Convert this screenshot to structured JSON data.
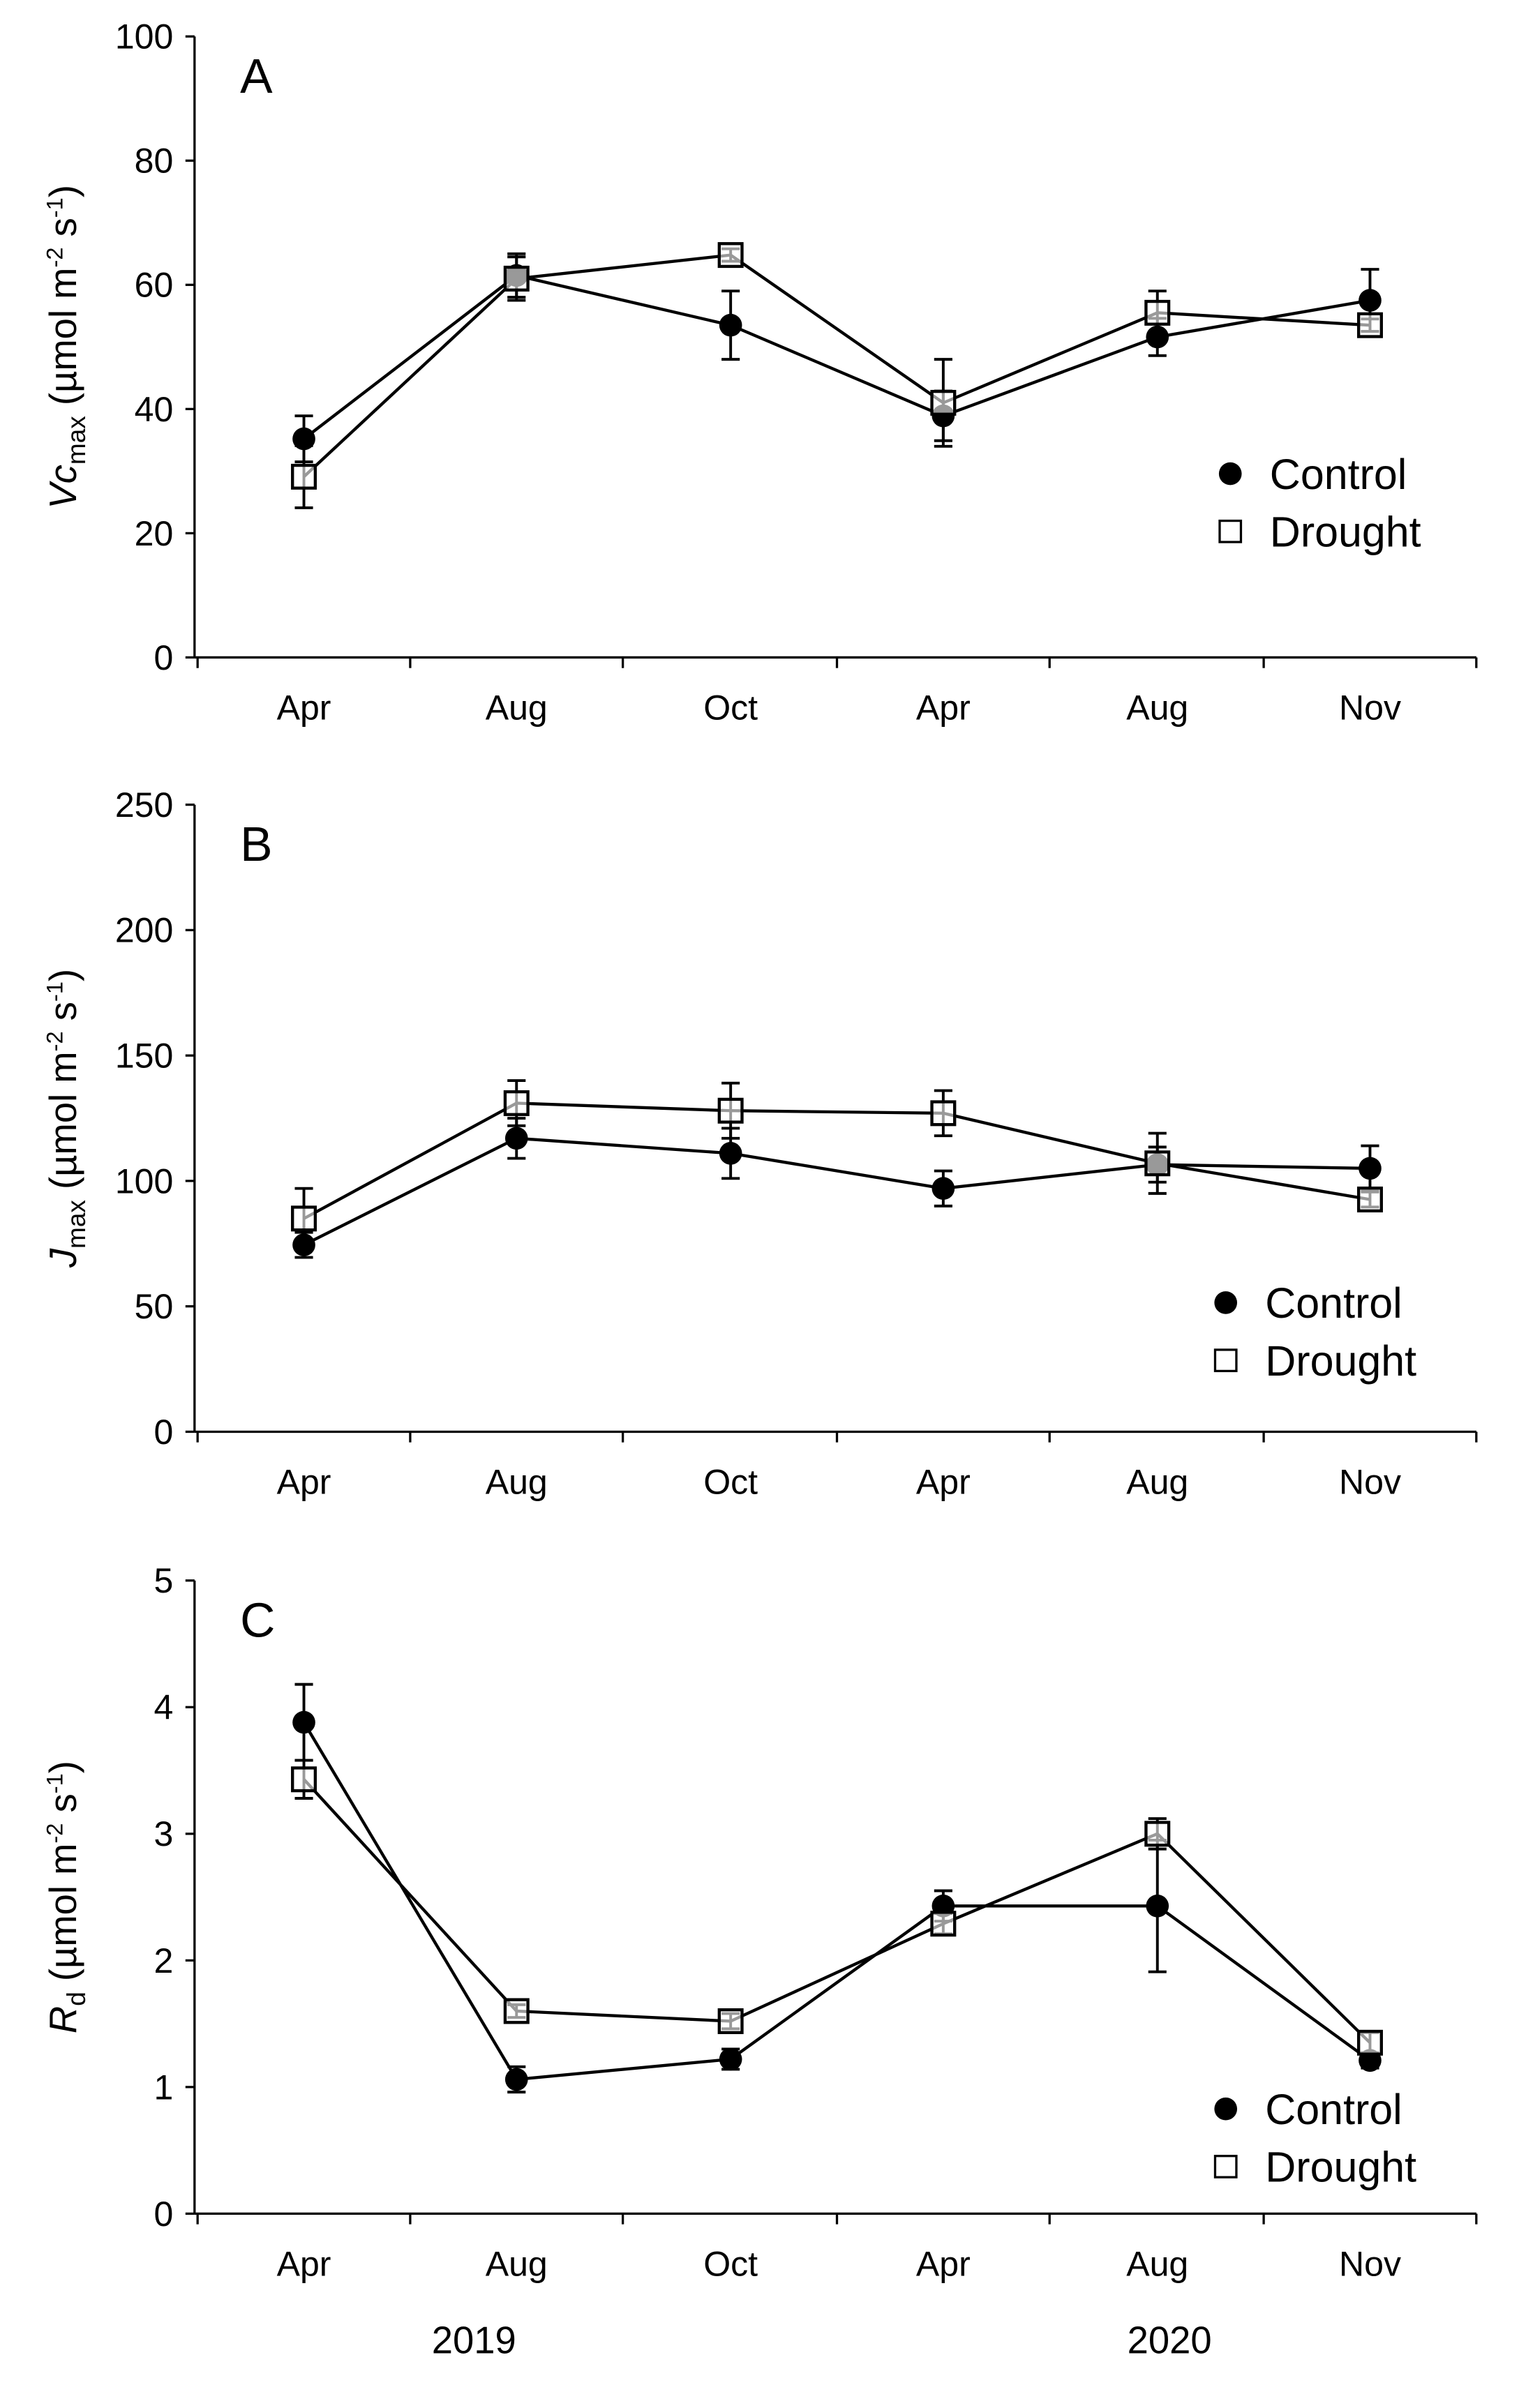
{
  "chart_data": [
    {
      "type": "line",
      "panel_label": "A",
      "ylabel": {
        "main": "Vc",
        "sub": "max",
        "unit": " (µmol m",
        "exp1": "-2",
        "mid": " s",
        "exp2": "-1",
        "close": ")"
      },
      "ylim": [
        0,
        100
      ],
      "yticks": [
        "0",
        "20",
        "40",
        "60",
        "80",
        "100"
      ],
      "categories": [
        "Apr",
        "Aug",
        "Oct",
        "Apr",
        "Aug",
        "Nov"
      ],
      "legend_placement": "right-lower",
      "series": [
        {
          "name": "Control",
          "marker": "filled-circle",
          "values": [
            35.2,
            61.5,
            53.5,
            38.9,
            51.6,
            57.5
          ],
          "errors": [
            3.7,
            3.5,
            5.5,
            4.0,
            3.0,
            5.0
          ]
        },
        {
          "name": "Drought",
          "marker": "open-square",
          "values": [
            29.1,
            61.0,
            64.8,
            41.0,
            55.5,
            53.5
          ],
          "errors": [
            5.0,
            3.5,
            1.0,
            7.0,
            3.5,
            1.0
          ]
        }
      ]
    },
    {
      "type": "line",
      "panel_label": "B",
      "ylabel": {
        "main": "J",
        "sub": "max",
        "unit": " (µmol m",
        "exp1": "-2",
        "mid": " s",
        "exp2": "-1",
        "close": ")"
      },
      "ylim": [
        0,
        250
      ],
      "yticks": [
        "0",
        "50",
        "100",
        "150",
        "200",
        "250"
      ],
      "categories": [
        "Apr",
        "Aug",
        "Oct",
        "Apr",
        "Aug",
        "Nov"
      ],
      "legend_placement": "right-lower",
      "series": [
        {
          "name": "Control",
          "marker": "filled-circle",
          "values": [
            74.5,
            117,
            111,
            97,
            106.5,
            105
          ],
          "errors": [
            5,
            8,
            10,
            7,
            7,
            9
          ]
        },
        {
          "name": "Drought",
          "marker": "open-square",
          "values": [
            85,
            131,
            128,
            127,
            107,
            92.6
          ],
          "errors": [
            12,
            9,
            11,
            9,
            12,
            3
          ]
        }
      ]
    },
    {
      "type": "line",
      "panel_label": "C",
      "ylabel": {
        "main": "R",
        "sub": "d",
        "unit": " (µmol m",
        "exp1": "-2",
        "mid": " s",
        "exp2": "-1",
        "close": ")"
      },
      "ylim": [
        0,
        5
      ],
      "yticks": [
        "0",
        "1",
        "2",
        "3",
        "4",
        "5"
      ],
      "categories": [
        "Apr",
        "Aug",
        "Oct",
        "Apr",
        "Aug",
        "Nov"
      ],
      "year_labels": [
        "2019",
        "2020"
      ],
      "legend_placement": "right-lower",
      "series": [
        {
          "name": "Control",
          "marker": "filled-circle",
          "values": [
            3.88,
            1.06,
            1.22,
            2.43,
            2.43,
            1.21
          ],
          "errors": [
            0.3,
            0.1,
            0.08,
            0.12,
            0.52,
            0.06
          ]
        },
        {
          "name": "Drought",
          "marker": "open-square",
          "values": [
            3.43,
            1.6,
            1.52,
            2.29,
            3.0,
            1.35
          ],
          "errors": [
            0.15,
            0.05,
            0.06,
            0.08,
            0.12,
            0.08
          ]
        }
      ]
    }
  ]
}
